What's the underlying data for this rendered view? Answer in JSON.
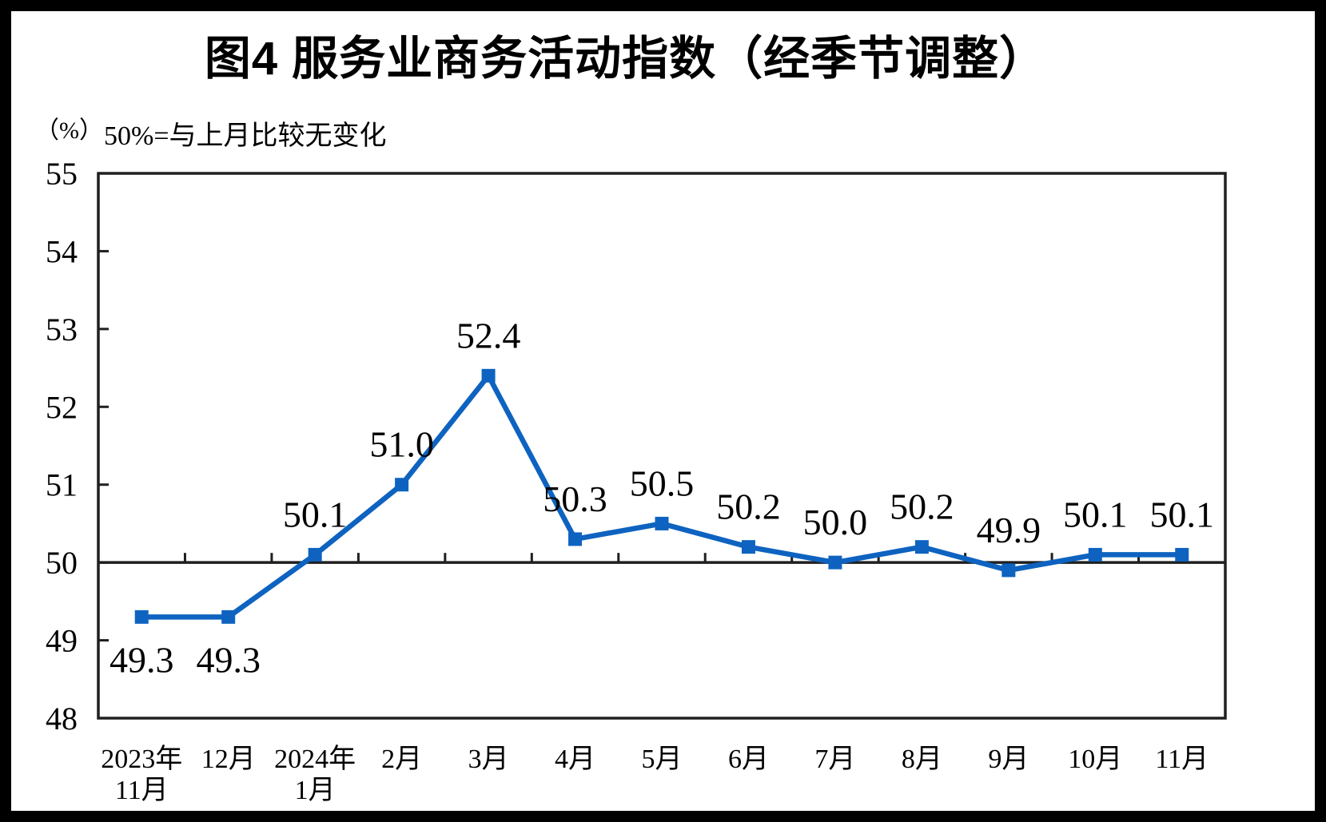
{
  "chart_data": {
    "type": "line",
    "title": "图4 服务业商务活动指数（经季节调整）",
    "unit_label": "（%）",
    "note": "50%=与上月比较无变化",
    "x_categories": [
      [
        "2023年",
        "11月"
      ],
      [
        "12月"
      ],
      [
        "2024年",
        "1月"
      ],
      [
        "2月"
      ],
      [
        "3月"
      ],
      [
        "4月"
      ],
      [
        "5月"
      ],
      [
        "6月"
      ],
      [
        "7月"
      ],
      [
        "8月"
      ],
      [
        "9月"
      ],
      [
        "10月"
      ],
      [
        "11月"
      ]
    ],
    "values": [
      49.3,
      49.3,
      50.1,
      51.0,
      52.4,
      50.3,
      50.5,
      50.2,
      50.0,
      50.2,
      49.9,
      50.1,
      50.1
    ],
    "point_labels": [
      "49.3",
      "49.3",
      "50.1",
      "51.0",
      "52.4",
      "50.3",
      "50.5",
      "50.2",
      "50.0",
      "50.2",
      "49.9",
      "50.1",
      "50.1"
    ],
    "label_below_indices": [
      0,
      1
    ],
    "ylim": [
      48,
      55
    ],
    "y_ticks": [
      48,
      49,
      50,
      51,
      52,
      53,
      54,
      55
    ],
    "reference_line": 50,
    "line_color": "#0E63C0",
    "axis_color": "#1f1f1f",
    "text_color": "#000000",
    "legend": "none",
    "grid": "off"
  }
}
